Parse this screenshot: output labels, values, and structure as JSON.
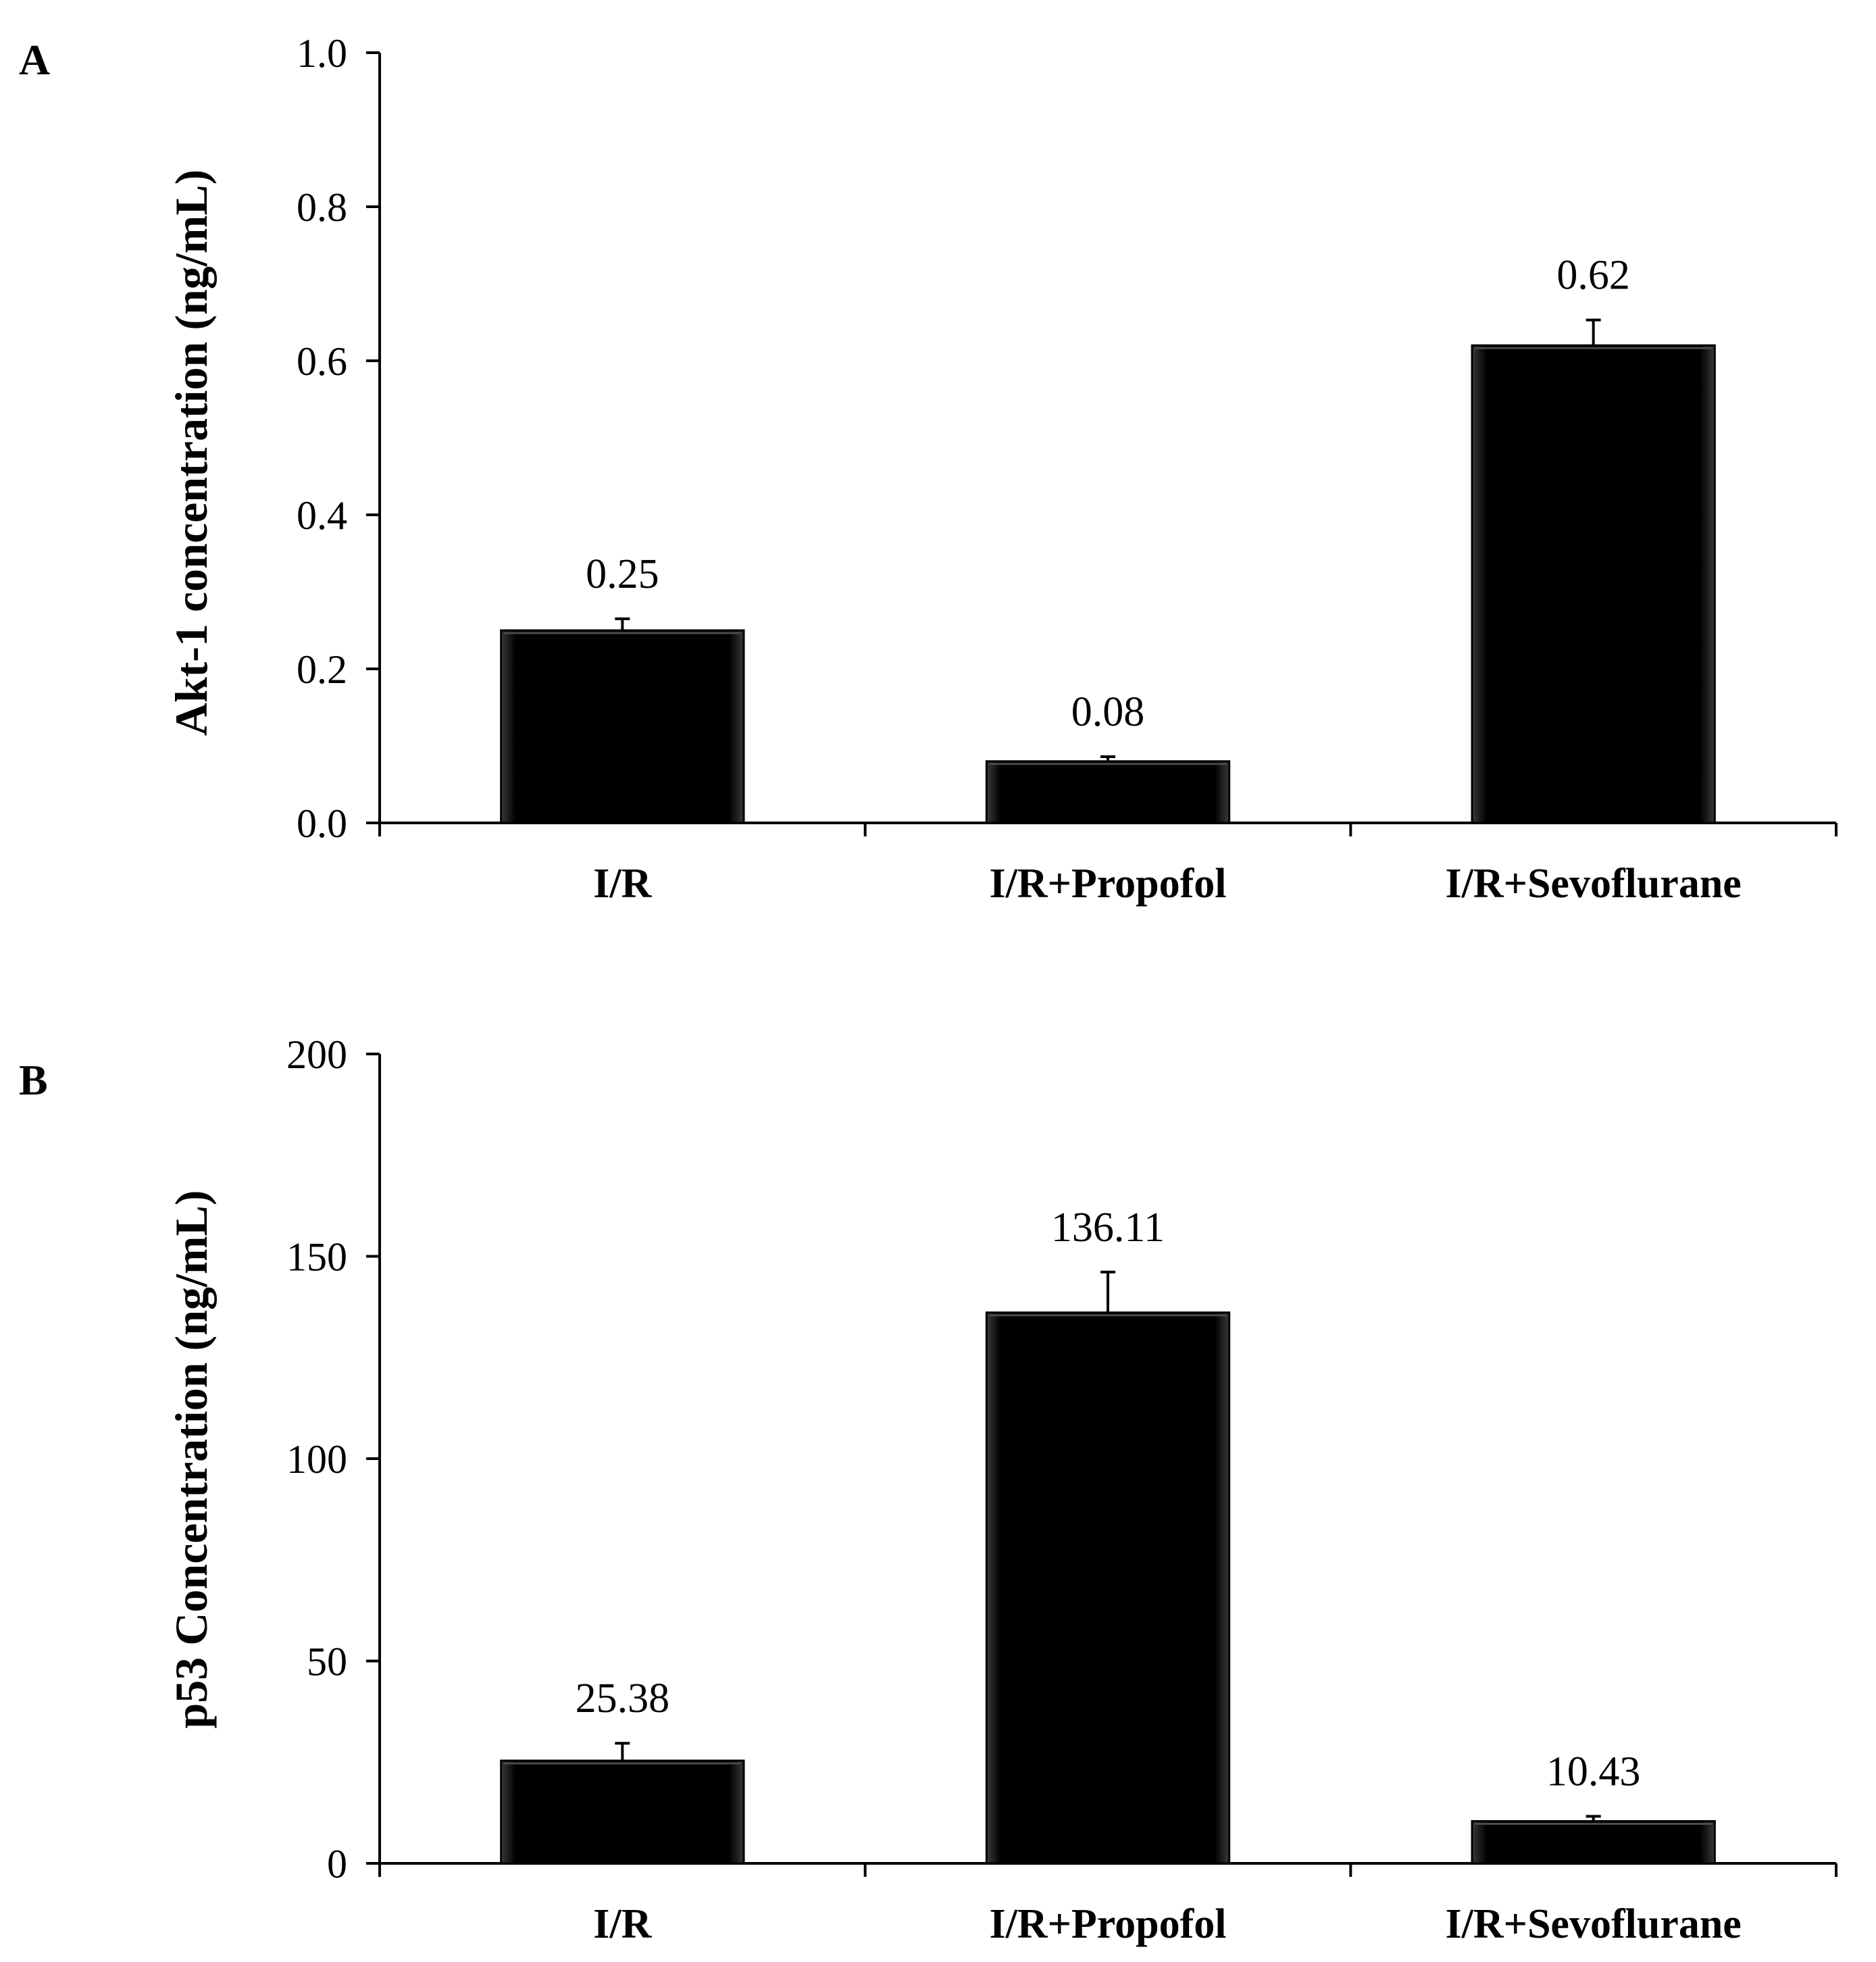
{
  "chart_data": [
    {
      "panel": "A",
      "type": "bar",
      "ylabel": "Akt-1  concentration (ng/mL)",
      "categories": [
        "I/R",
        "I/R+Propofol",
        "I/R+Sevoflurane"
      ],
      "values": [
        0.25,
        0.08,
        0.62
      ],
      "data_labels": [
        "0.25",
        "0.08",
        "0.62"
      ],
      "error_bars": [
        0.015,
        0.006,
        0.033
      ],
      "ylim": [
        0,
        1.0
      ],
      "yticks": [
        0,
        0.2,
        0.4,
        0.6,
        0.8,
        1.0
      ],
      "ytick_labels": [
        "0.0",
        "0.2",
        "0.4",
        "0.6",
        "0.8",
        "1.0"
      ],
      "bar_color": "#000000"
    },
    {
      "panel": "B",
      "type": "bar",
      "ylabel": "p53 Concentration (ng/mL)",
      "categories": [
        "I/R",
        "I/R+Propofol",
        "I/R+Sevoflurane"
      ],
      "values": [
        25.38,
        136.11,
        10.43
      ],
      "data_labels": [
        "25.38",
        "136.11",
        "10.43"
      ],
      "error_bars": [
        4.3,
        10.0,
        1.2
      ],
      "ylim": [
        0,
        200
      ],
      "yticks": [
        0,
        50,
        100,
        150,
        200
      ],
      "ytick_labels": [
        "0",
        "50",
        "100",
        "150",
        "200"
      ],
      "bar_color": "#000000"
    }
  ]
}
